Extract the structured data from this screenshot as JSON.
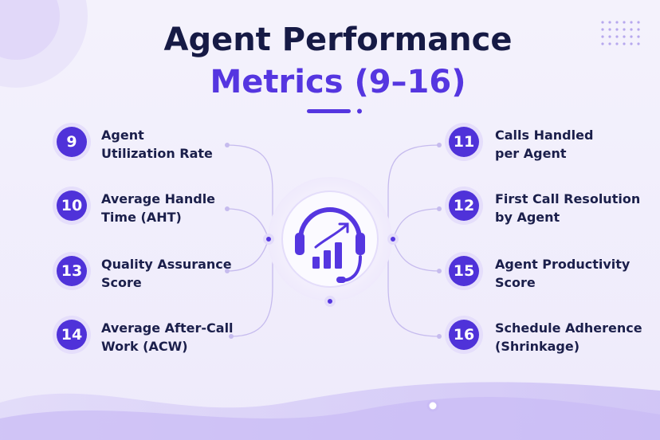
{
  "header": {
    "title": "Agent Performance",
    "subtitle": "Metrics (9–16)"
  },
  "left_items": [
    {
      "number": "9",
      "lines": [
        "Agent",
        "Utilization Rate"
      ]
    },
    {
      "number": "10",
      "lines": [
        "Average Handle",
        "Time (AHT)"
      ]
    },
    {
      "number": "13",
      "lines": [
        "Quality Assurance",
        "Score"
      ]
    },
    {
      "number": "14",
      "lines": [
        "Average After-Call",
        "Work (ACW)"
      ]
    }
  ],
  "right_items": [
    {
      "number": "11",
      "lines": [
        "Calls Handled",
        "per Agent"
      ]
    },
    {
      "number": "12",
      "lines": [
        "First Call Resolution",
        "by Agent"
      ]
    },
    {
      "number": "15",
      "lines": [
        "Agent Productivity",
        "Score"
      ]
    },
    {
      "number": "16",
      "lines": [
        "Schedule Adherence",
        "(Shrinkage)"
      ]
    }
  ]
}
